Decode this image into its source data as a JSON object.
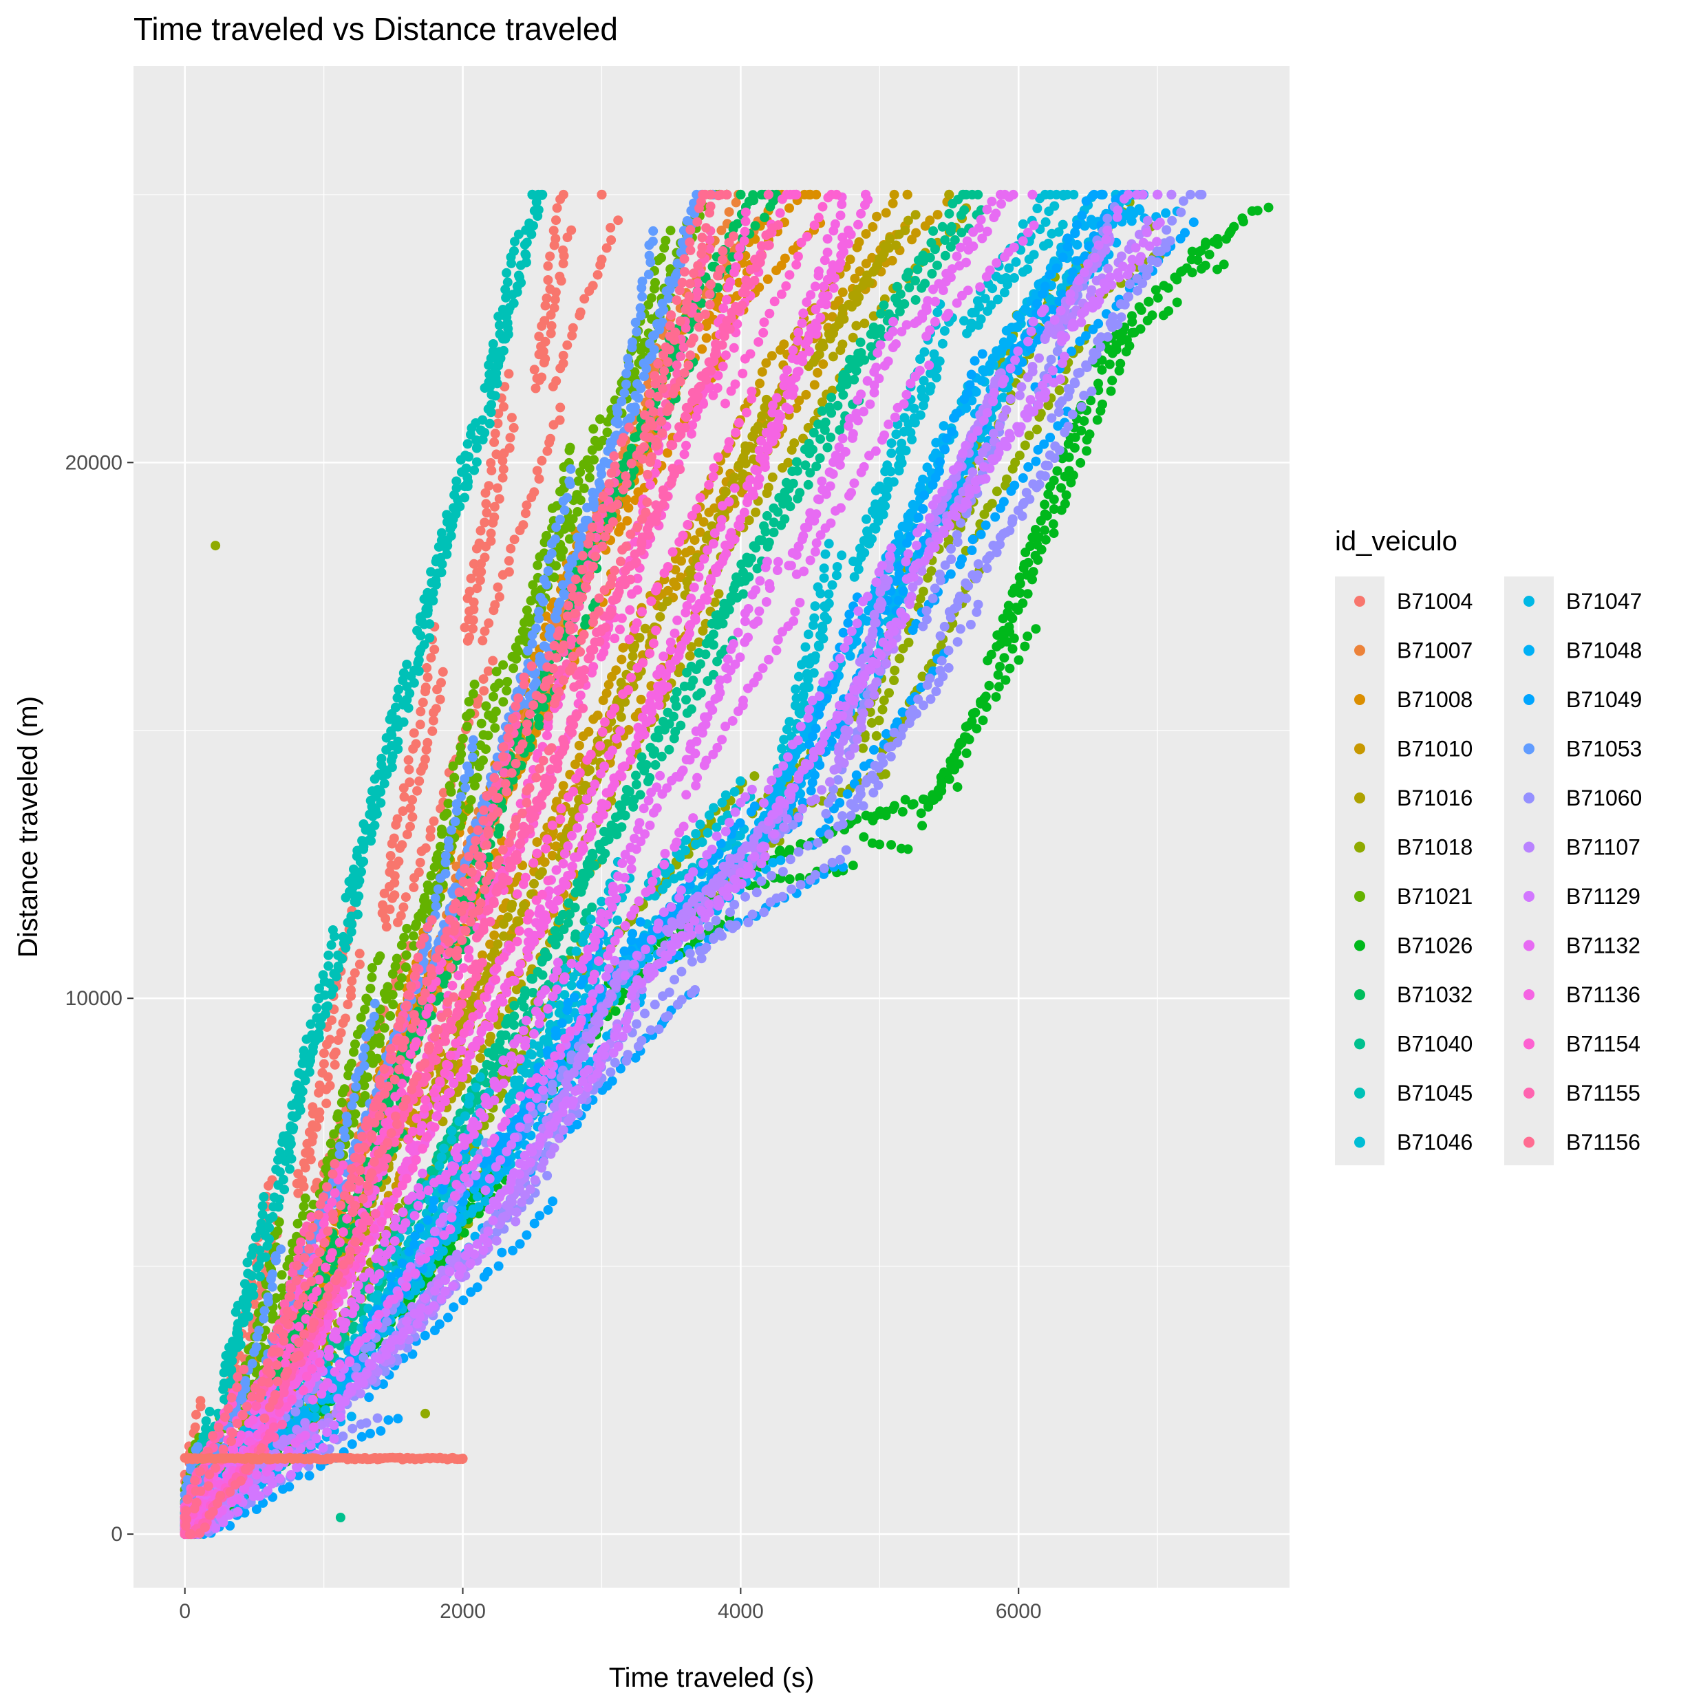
{
  "chart_data": {
    "type": "scatter",
    "title": "Time traveled vs Distance traveled",
    "xlabel": "Time traveled (s)",
    "ylabel": "Distance traveled (m)",
    "xlim": [
      -370,
      7950
    ],
    "ylim": [
      -1000,
      27400
    ],
    "x_ticks": [
      0,
      2000,
      4000,
      6000
    ],
    "x_tick_labels": [
      "0",
      "2000",
      "4000",
      "6000"
    ],
    "y_ticks": [
      0,
      10000,
      20000
    ],
    "y_tick_labels": [
      "0",
      "10000",
      "20000"
    ],
    "grid": true,
    "legend_title": "id_veiculo",
    "legend_position": "right",
    "series": [
      {
        "name": "B71004",
        "color": "#F8766D",
        "points": [
          [
            0,
            0
          ],
          [
            400,
            2400
          ],
          [
            900,
            6500
          ],
          [
            1500,
            11500
          ],
          [
            2100,
            16800
          ],
          [
            2600,
            21500
          ],
          [
            3000,
            25000
          ]
        ]
      },
      {
        "name": "B71007",
        "color": "#EC8239",
        "points": [
          [
            0,
            0
          ],
          [
            600,
            2800
          ],
          [
            1200,
            7200
          ],
          [
            1900,
            12200
          ],
          [
            2600,
            17000
          ],
          [
            3300,
            21800
          ],
          [
            3900,
            25000
          ]
        ]
      },
      {
        "name": "B71008",
        "color": "#DB8E00",
        "points": [
          [
            0,
            0
          ],
          [
            700,
            3200
          ],
          [
            1400,
            8000
          ],
          [
            2200,
            13500
          ],
          [
            3000,
            18500
          ],
          [
            3800,
            22500
          ],
          [
            4500,
            25000
          ]
        ]
      },
      {
        "name": "B71010",
        "color": "#C79800",
        "points": [
          [
            0,
            0
          ],
          [
            800,
            3000
          ],
          [
            1600,
            7500
          ],
          [
            2500,
            12500
          ],
          [
            3400,
            17500
          ],
          [
            4300,
            22000
          ],
          [
            5200,
            25000
          ]
        ]
      },
      {
        "name": "B71016",
        "color": "#AEA200",
        "points": [
          [
            0,
            0
          ],
          [
            900,
            3100
          ],
          [
            1800,
            7800
          ],
          [
            2800,
            12800
          ],
          [
            3700,
            17800
          ],
          [
            4600,
            22000
          ],
          [
            5500,
            25000
          ]
        ]
      },
      {
        "name": "B71018",
        "color": "#8FAA00",
        "points": [
          [
            0,
            0
          ],
          [
            1000,
            2800
          ],
          [
            2000,
            6500
          ],
          [
            3000,
            10500
          ],
          [
            4200,
            13500
          ],
          [
            5000,
            14700
          ],
          [
            5600,
            18500
          ],
          [
            6400,
            23000
          ],
          [
            6950,
            24400
          ]
        ]
      },
      {
        "name": "B71021",
        "color": "#64B200",
        "points": [
          [
            0,
            0
          ],
          [
            500,
            2500
          ],
          [
            1100,
            6500
          ],
          [
            1800,
            11500
          ],
          [
            2500,
            16500
          ],
          [
            3200,
            21000
          ],
          [
            3900,
            25000
          ]
        ]
      },
      {
        "name": "B71026",
        "color": "#00B81B",
        "points": [
          [
            0,
            0
          ],
          [
            1000,
            2600
          ],
          [
            2000,
            6200
          ],
          [
            3000,
            10200
          ],
          [
            4000,
            12300
          ],
          [
            4900,
            13200
          ],
          [
            5300,
            13500
          ],
          [
            5800,
            16500
          ],
          [
            6500,
            22000
          ],
          [
            7200,
            23800
          ],
          [
            7550,
            24400
          ]
        ]
      },
      {
        "name": "B71032",
        "color": "#00BD5C",
        "points": [
          [
            0,
            0
          ],
          [
            600,
            3000
          ],
          [
            1300,
            7500
          ],
          [
            2000,
            12500
          ],
          [
            2700,
            17500
          ],
          [
            3400,
            22000
          ],
          [
            4000,
            25000
          ]
        ]
      },
      {
        "name": "B71040",
        "color": "#00C08E",
        "points": [
          [
            0,
            0
          ],
          [
            900,
            2900
          ],
          [
            1800,
            7000
          ],
          [
            2800,
            12000
          ],
          [
            3800,
            17000
          ],
          [
            4700,
            21500
          ],
          [
            5600,
            25000
          ]
        ]
      },
      {
        "name": "B71045",
        "color": "#00C1B7",
        "points": [
          [
            0,
            0
          ],
          [
            300,
            3000
          ],
          [
            700,
            7000
          ],
          [
            1200,
            12000
          ],
          [
            1700,
            17000
          ],
          [
            2200,
            21500
          ],
          [
            2500,
            25000
          ]
        ]
      },
      {
        "name": "B71046",
        "color": "#00BDD5",
        "points": [
          [
            0,
            0
          ],
          [
            1200,
            3000
          ],
          [
            2400,
            8000
          ],
          [
            3400,
            12000
          ],
          [
            4300,
            13500
          ],
          [
            4900,
            18000
          ],
          [
            5700,
            22500
          ],
          [
            6600,
            25000
          ]
        ]
      },
      {
        "name": "B71047",
        "color": "#00B8E5",
        "points": [
          [
            0,
            0
          ],
          [
            1100,
            2800
          ],
          [
            2200,
            6800
          ],
          [
            3200,
            10800
          ],
          [
            4200,
            13200
          ],
          [
            5000,
            17000
          ],
          [
            5800,
            21500
          ],
          [
            6700,
            25000
          ]
        ]
      },
      {
        "name": "B71048",
        "color": "#00B0F6",
        "points": [
          [
            0,
            0
          ],
          [
            1000,
            2600
          ],
          [
            2100,
            6500
          ],
          [
            3100,
            10500
          ],
          [
            4100,
            13000
          ],
          [
            4800,
            16500
          ],
          [
            5600,
            21000
          ],
          [
            6500,
            24500
          ],
          [
            7000,
            25000
          ]
        ]
      },
      {
        "name": "B71049",
        "color": "#00A5FF",
        "points": [
          [
            0,
            0
          ],
          [
            1200,
            2700
          ],
          [
            2300,
            6700
          ],
          [
            3300,
            10700
          ],
          [
            4400,
            13000
          ],
          [
            5100,
            17000
          ],
          [
            6000,
            21500
          ],
          [
            6900,
            25000
          ]
        ]
      },
      {
        "name": "B71053",
        "color": "#619CFF",
        "points": [
          [
            0,
            0
          ],
          [
            500,
            2300
          ],
          [
            1100,
            6000
          ],
          [
            1800,
            10500
          ],
          [
            2500,
            15500
          ],
          [
            3200,
            20500
          ],
          [
            3800,
            25000
          ]
        ]
      },
      {
        "name": "B71060",
        "color": "#9590FF",
        "points": [
          [
            0,
            0
          ],
          [
            1300,
            3000
          ],
          [
            2500,
            7500
          ],
          [
            3600,
            11000
          ],
          [
            4700,
            13500
          ],
          [
            5400,
            17000
          ],
          [
            6200,
            21000
          ],
          [
            7000,
            25000
          ]
        ]
      },
      {
        "name": "B71107",
        "color": "#B983FF",
        "points": [
          [
            0,
            0
          ],
          [
            1300,
            2800
          ],
          [
            2400,
            6000
          ],
          [
            3600,
            11500
          ],
          [
            4800,
            14500
          ],
          [
            5500,
            19000
          ],
          [
            6300,
            22500
          ],
          [
            7100,
            25000
          ]
        ]
      },
      {
        "name": "B71129",
        "color": "#D277FF",
        "points": [
          [
            0,
            0
          ],
          [
            1100,
            2600
          ],
          [
            2200,
            6300
          ],
          [
            3200,
            10300
          ],
          [
            4200,
            13500
          ],
          [
            5200,
            18000
          ],
          [
            6300,
            22500
          ],
          [
            7000,
            25000
          ]
        ]
      },
      {
        "name": "B71132",
        "color": "#E76BF3",
        "points": [
          [
            0,
            0
          ],
          [
            900,
            2600
          ],
          [
            1900,
            6500
          ],
          [
            2900,
            10500
          ],
          [
            3600,
            14000
          ],
          [
            4400,
            18000
          ],
          [
            5300,
            22500
          ],
          [
            6100,
            25000
          ]
        ]
      },
      {
        "name": "B71136",
        "color": "#F564E3",
        "points": [
          [
            0,
            0
          ],
          [
            800,
            2800
          ],
          [
            1600,
            6800
          ],
          [
            2500,
            11000
          ],
          [
            3300,
            15000
          ],
          [
            4100,
            19500
          ],
          [
            4900,
            25000
          ]
        ]
      },
      {
        "name": "B71154",
        "color": "#FD61D1",
        "points": [
          [
            0,
            0
          ],
          [
            700,
            2900
          ],
          [
            1500,
            7200
          ],
          [
            2300,
            11800
          ],
          [
            3100,
            16500
          ],
          [
            3800,
            21000
          ],
          [
            4400,
            25000
          ]
        ]
      },
      {
        "name": "B71155",
        "color": "#FF64B0",
        "points": [
          [
            0,
            0
          ],
          [
            650,
            2600
          ],
          [
            1300,
            6600
          ],
          [
            2100,
            11300
          ],
          [
            2800,
            16000
          ],
          [
            3500,
            20500
          ],
          [
            4200,
            25000
          ]
        ]
      },
      {
        "name": "B71156",
        "color": "#FF6C91",
        "points": [
          [
            0,
            0
          ],
          [
            550,
            2400
          ],
          [
            1200,
            6200
          ],
          [
            1900,
            10800
          ],
          [
            2600,
            15500
          ],
          [
            3300,
            20000
          ],
          [
            3900,
            25000
          ]
        ]
      }
    ],
    "extra_points": [
      {
        "name": "B71018",
        "color": "#8FAA00",
        "points": [
          [
            220,
            18450
          ],
          [
            1730,
            2250
          ]
        ]
      },
      {
        "name": "B71040",
        "color": "#00C08E",
        "points": [
          [
            1120,
            310
          ]
        ]
      },
      {
        "name": "B71004",
        "color": "#F8766D",
        "points": [
          [
            0,
            1420
          ],
          [
            300,
            1420
          ],
          [
            600,
            1420
          ],
          [
            900,
            1410
          ],
          [
            1200,
            1405
          ],
          [
            1400,
            1400
          ],
          [
            1700,
            1400
          ],
          [
            2000,
            1410
          ]
        ]
      }
    ]
  }
}
